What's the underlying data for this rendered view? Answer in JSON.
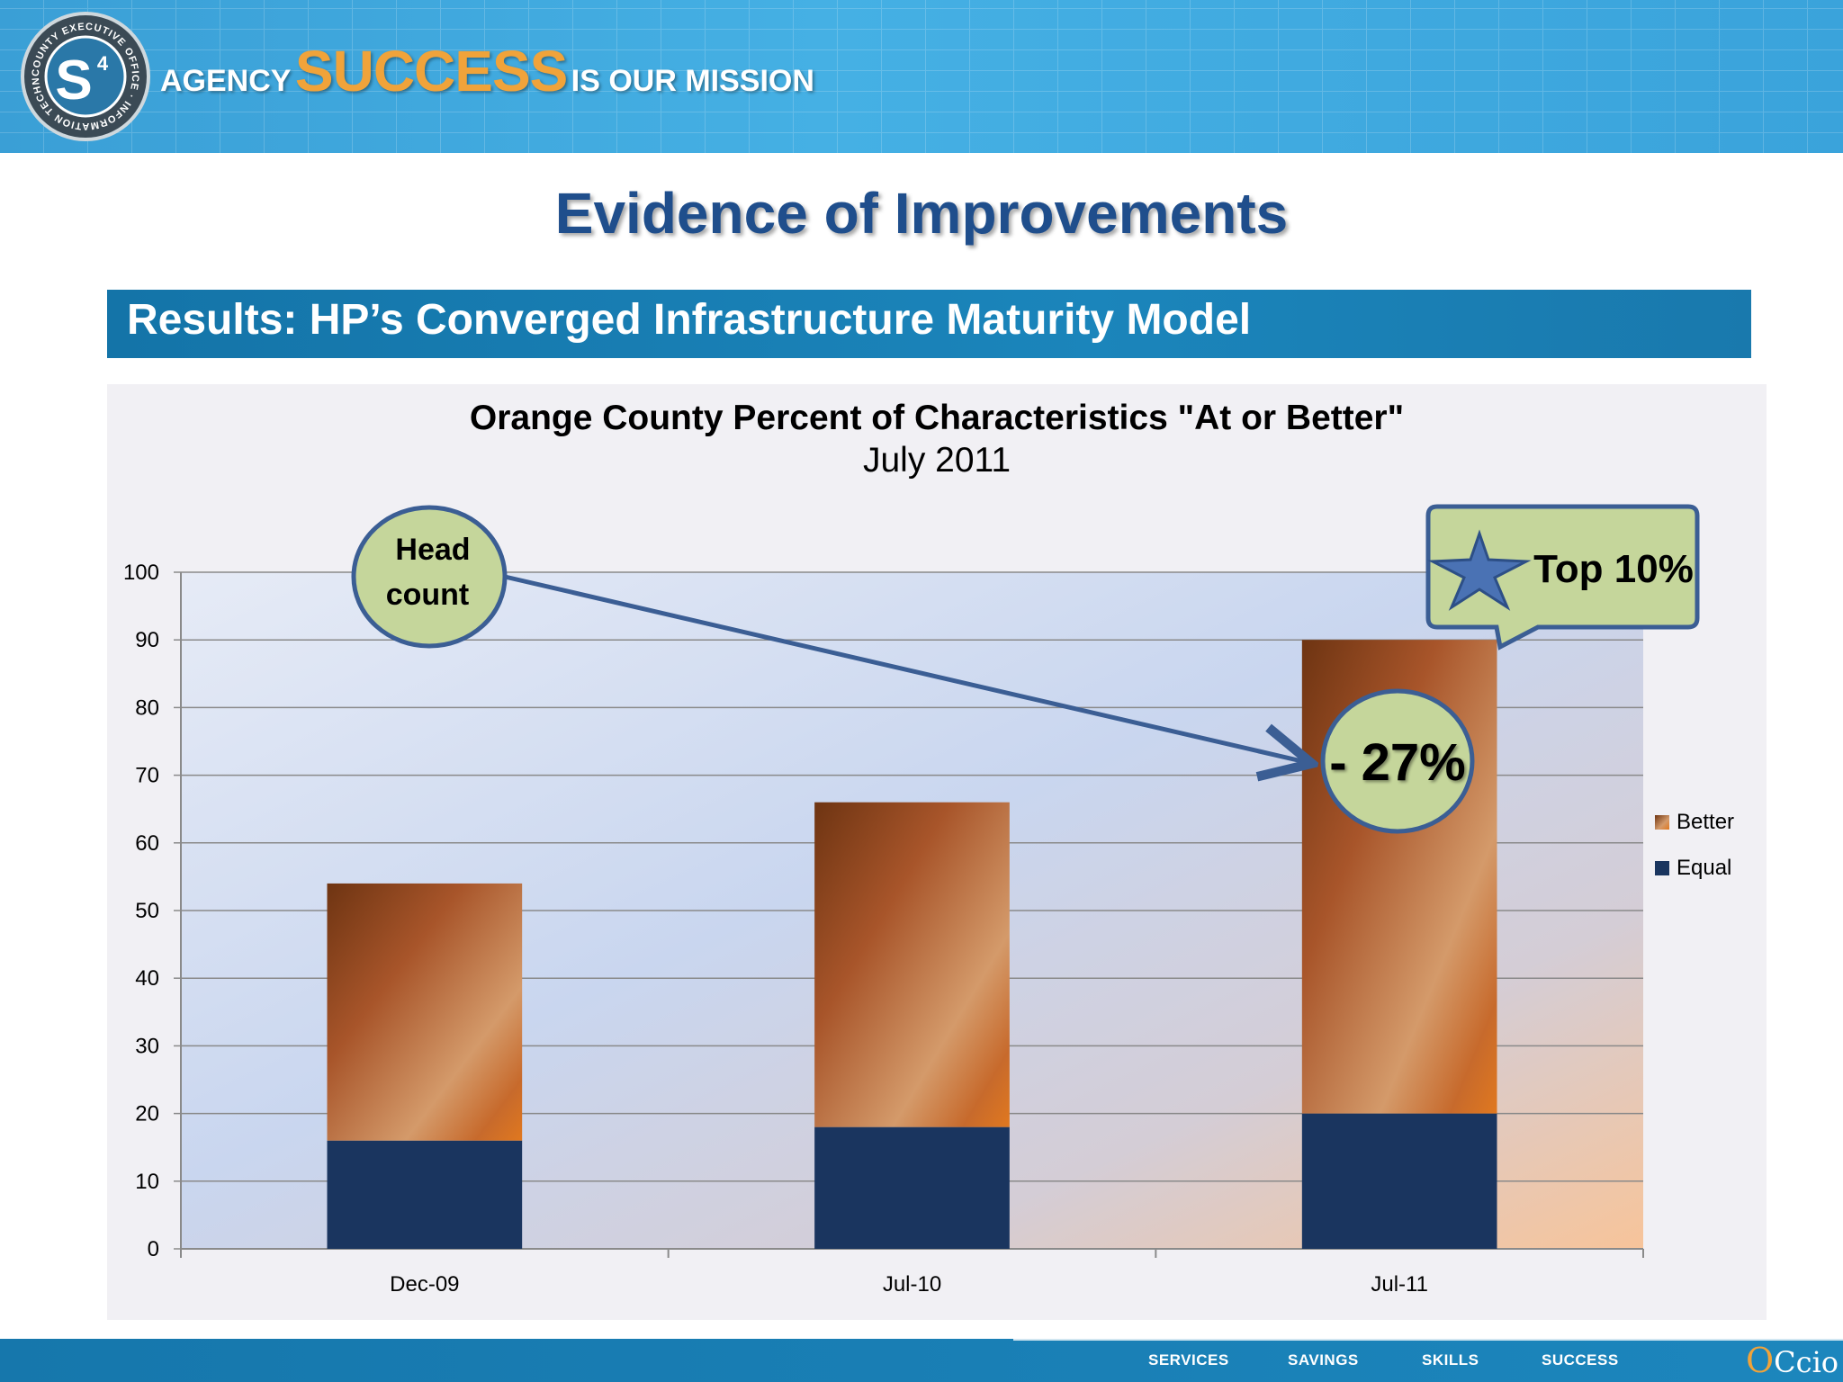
{
  "header": {
    "logo_ring_text": "COUNTY EXECUTIVE OFFICE · INFORMATION TECHNOLOGY",
    "logo_mark": "S",
    "logo_sup": "4",
    "tagline_1": "AGENCY",
    "tagline_2": "SUCCESS",
    "tagline_3": "IS OUR MISSION"
  },
  "page_title": "Evidence of Improvements",
  "subtitle": "Results: HP’s Converged Infrastructure Maturity Model",
  "chart_data": {
    "type": "bar",
    "stacked": true,
    "title": "Orange County Percent of Characteristics \"At or Better\"",
    "subtitle": "July 2011",
    "categories": [
      "Dec-09",
      "Jul-10",
      "Jul-11"
    ],
    "series": [
      {
        "name": "Equal",
        "values": [
          16,
          18,
          20
        ],
        "color": "#1a355f"
      },
      {
        "name": "Better",
        "values": [
          38,
          48,
          70
        ],
        "color": "#b5602a"
      }
    ],
    "ylim": [
      0,
      100
    ],
    "yticks": [
      "0",
      "10",
      "20",
      "30",
      "40",
      "50",
      "60",
      "70",
      "80",
      "90",
      "100"
    ],
    "grid": true,
    "legend": "right",
    "legend_order": [
      "Better",
      "Equal"
    ],
    "annotations": {
      "headcount_line1": "Head",
      "headcount_line2": "count",
      "change": "- 27%",
      "top_label": "Top 10%"
    }
  },
  "footer": {
    "nav": [
      "SERVICES",
      "SAVINGS",
      "SKILLS",
      "SUCCESS"
    ],
    "brand_o": "O",
    "brand_rest": "Ccio"
  }
}
